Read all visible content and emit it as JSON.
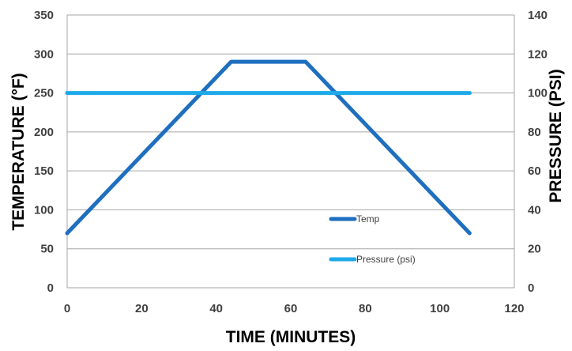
{
  "chart_data": {
    "type": "line",
    "xlabel": "TIME (MINUTES)",
    "ylabel_left": "TEMPERATURE (°F)",
    "ylabel_right": "PRESSURE (PSI)",
    "xlim": [
      0,
      120
    ],
    "ylim_left": [
      0,
      350
    ],
    "ylim_right": [
      0,
      140
    ],
    "x_ticks": [
      "0",
      "20",
      "40",
      "60",
      "80",
      "100",
      "120"
    ],
    "y_left_ticks": [
      "0",
      "50",
      "100",
      "150",
      "200",
      "250",
      "300",
      "350"
    ],
    "y_right_ticks": [
      "0",
      "20",
      "40",
      "60",
      "80",
      "100",
      "120",
      "140"
    ],
    "grid": true,
    "legend_placement": "inside-bottom-right",
    "series": [
      {
        "name": "Temp",
        "axis": "left",
        "color": "#1f6fbf",
        "x": [
          0,
          44,
          64,
          108
        ],
        "y": [
          70,
          290,
          290,
          70
        ]
      },
      {
        "name": "Pressure (psi)",
        "axis": "right",
        "color": "#1ea9e8",
        "x": [
          0,
          108
        ],
        "y": [
          100,
          100
        ]
      }
    ]
  }
}
